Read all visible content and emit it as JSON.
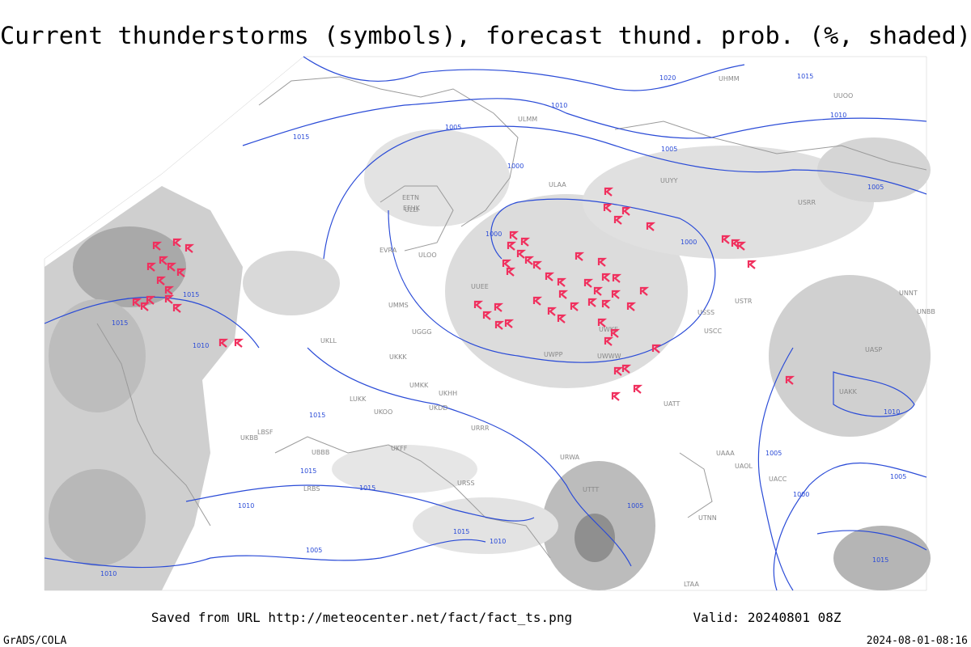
{
  "header": {
    "title": "Current thunderstorms (symbols), forecast thund. prob. (%, shaded)"
  },
  "map": {
    "isobar_labels": [
      "1020",
      "1015",
      "1010",
      "1005",
      "1015",
      "1000",
      "1005",
      "1000",
      "1015",
      "1015",
      "1010",
      "1015",
      "1015",
      "1010",
      "1015",
      "1015",
      "1010",
      "1000",
      "1005",
      "1005",
      "1010",
      "1005",
      "1000",
      "1010",
      "1015",
      "1005",
      "1005",
      "1010"
    ],
    "station_labels": [
      "UUEE",
      "UMMS",
      "UKKK",
      "UKLL",
      "UKOO",
      "UGGG",
      "URRR",
      "URSS",
      "URWA",
      "UAAA",
      "UACC",
      "UTTT",
      "ULLI",
      "ULOO",
      "UWWW",
      "USSS",
      "USTR",
      "UNNT",
      "UHMM",
      "ULAA",
      "UWPP",
      "UATT",
      "UUYY",
      "USRR",
      "UKBB",
      "UBBB",
      "LBSF",
      "LRBS",
      "LUKK",
      "UMKK",
      "EVRA",
      "EETN",
      "EFHK",
      "ULMM",
      "UUOO",
      "UKDD",
      "UKFF",
      "UKHH",
      "UWKE",
      "USCC",
      "UNBB",
      "UAKK",
      "UASP",
      "UAOL",
      "UTNN",
      "LTAA"
    ]
  },
  "footer": {
    "source": "Saved from URL http://meteocenter.net/fact/fact_ts.png",
    "valid": "Valid: 20240801 08Z",
    "credit": "GrADS/COLA",
    "timestamp": "2024-08-01-08:16"
  }
}
